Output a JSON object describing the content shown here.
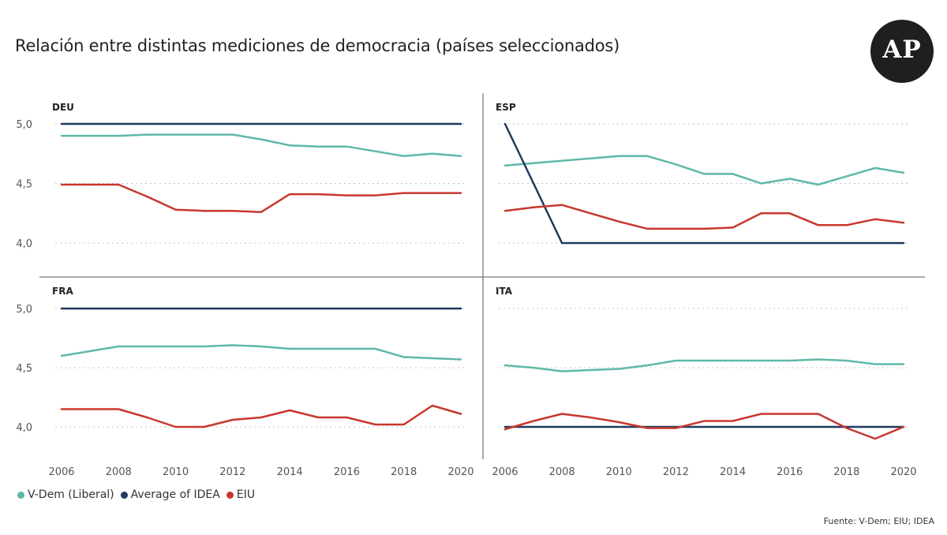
{
  "title": "Relación entre distintas mediciones de democracia (países seleccionados)",
  "logo": {
    "text": "AP"
  },
  "source": "Fuente: V-Dem; EIU; IDEA",
  "legend": [
    {
      "label": "V-Dem (Liberal)",
      "color": "#5fb8a8"
    },
    {
      "label": "Average of IDEA",
      "color": "#1e3a5f"
    },
    {
      "label": "EIU",
      "color": "#c8372d"
    }
  ],
  "chart_data": {
    "type": "line",
    "x": [
      2006,
      2007,
      2008,
      2009,
      2010,
      2011,
      2012,
      2013,
      2014,
      2015,
      2016,
      2017,
      2018,
      2019,
      2020
    ],
    "x_ticks": [
      "2006",
      "2008",
      "2010",
      "2012",
      "2014",
      "2016",
      "2018",
      "2020"
    ],
    "y_ticks": [
      "4,0",
      "4,5",
      "5,0"
    ],
    "ylim": [
      3.85,
      5.0
    ],
    "panels": [
      {
        "label": "DEU",
        "series": [
          {
            "name": "V-Dem (Liberal)",
            "values": [
              4.9,
              4.9,
              4.9,
              4.91,
              4.91,
              4.91,
              4.91,
              4.87,
              4.82,
              4.81,
              4.81,
              4.77,
              4.73,
              4.75,
              4.73
            ]
          },
          {
            "name": "Average of IDEA",
            "values": [
              5.0,
              5.0,
              5.0,
              5.0,
              5.0,
              5.0,
              5.0,
              5.0,
              5.0,
              5.0,
              5.0,
              5.0,
              5.0,
              5.0,
              5.0
            ]
          },
          {
            "name": "EIU",
            "values": [
              4.49,
              4.49,
              4.49,
              4.39,
              4.28,
              4.27,
              4.27,
              4.26,
              4.41,
              4.41,
              4.4,
              4.4,
              4.42,
              4.42,
              4.42
            ]
          }
        ]
      },
      {
        "label": "ESP",
        "series": [
          {
            "name": "V-Dem (Liberal)",
            "values": [
              4.65,
              4.67,
              4.69,
              4.71,
              4.73,
              4.73,
              4.66,
              4.58,
              4.58,
              4.5,
              4.54,
              4.49,
              4.56,
              4.63,
              4.59
            ]
          },
          {
            "name": "Average of IDEA",
            "values": [
              5.0,
              4.5,
              4.0,
              4.0,
              4.0,
              4.0,
              4.0,
              4.0,
              4.0,
              4.0,
              4.0,
              4.0,
              4.0,
              4.0,
              4.0
            ]
          },
          {
            "name": "EIU",
            "values": [
              4.27,
              4.3,
              4.32,
              4.25,
              4.18,
              4.12,
              4.12,
              4.12,
              4.13,
              4.25,
              4.25,
              4.15,
              4.15,
              4.2,
              4.17
            ]
          }
        ]
      },
      {
        "label": "FRA",
        "series": [
          {
            "name": "V-Dem (Liberal)",
            "values": [
              4.6,
              4.64,
              4.68,
              4.68,
              4.68,
              4.68,
              4.69,
              4.68,
              4.66,
              4.66,
              4.66,
              4.66,
              4.59,
              4.58,
              4.57
            ]
          },
          {
            "name": "Average of IDEA",
            "values": [
              5.0,
              5.0,
              5.0,
              5.0,
              5.0,
              5.0,
              5.0,
              5.0,
              5.0,
              5.0,
              5.0,
              5.0,
              5.0,
              5.0,
              5.0
            ]
          },
          {
            "name": "EIU",
            "values": [
              4.15,
              4.15,
              4.15,
              4.08,
              4.0,
              4.0,
              4.06,
              4.08,
              4.14,
              4.08,
              4.08,
              4.02,
              4.02,
              4.18,
              4.11
            ]
          }
        ]
      },
      {
        "label": "ITA",
        "series": [
          {
            "name": "V-Dem (Liberal)",
            "values": [
              4.52,
              4.5,
              4.47,
              4.48,
              4.49,
              4.52,
              4.56,
              4.56,
              4.56,
              4.56,
              4.56,
              4.57,
              4.56,
              4.53,
              4.53
            ]
          },
          {
            "name": "Average of IDEA",
            "values": [
              4.0,
              4.0,
              4.0,
              4.0,
              4.0,
              4.0,
              4.0,
              4.0,
              4.0,
              4.0,
              4.0,
              4.0,
              4.0,
              4.0,
              4.0
            ]
          },
          {
            "name": "EIU",
            "values": [
              3.98,
              4.05,
              4.11,
              4.08,
              4.04,
              3.99,
              3.99,
              4.05,
              4.05,
              4.11,
              4.11,
              4.11,
              3.99,
              3.9,
              4.0
            ]
          }
        ]
      }
    ]
  }
}
